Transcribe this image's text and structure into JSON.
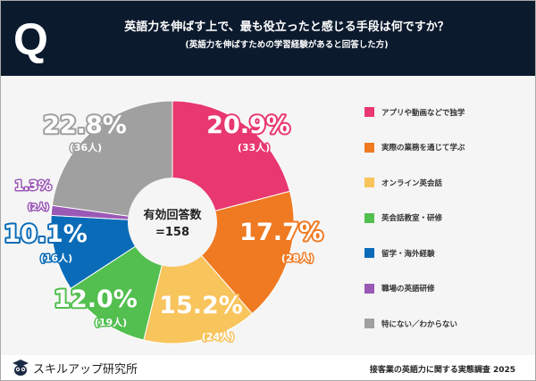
{
  "header": {
    "q": "Q",
    "title": "英語力を伸ばす上で、最も役立ったと感じる手段は何ですか？",
    "subtitle": "(英語力を伸ばすための学習経験があると回答した方)"
  },
  "chart_data": {
    "type": "pie",
    "donut": true,
    "title": "英語力を伸ばす上で、最も役立ったと感じる手段は何ですか？",
    "center_label": [
      "有効回答数",
      "=158"
    ],
    "total": 158,
    "categories": [
      "アプリや動画などで独学",
      "実際の業務を通じて学ぶ",
      "オンライン英会話",
      "英会話教室・研修",
      "留学・海外経験",
      "職場の英語研修",
      "特にない／わからない"
    ],
    "values": [
      20.9,
      17.7,
      15.2,
      12.0,
      10.1,
      1.3,
      22.8
    ],
    "value_labels": [
      "20.9%",
      "17.7%",
      "15.2%",
      "12.0%",
      "10.1%",
      "1.3%",
      "22.8%"
    ],
    "counts": [
      "(33人)",
      "(28人)",
      "(24人)",
      "(19人)",
      "(16人)",
      "(2人)",
      "(36人)"
    ],
    "colors": [
      "#e8386f",
      "#ef7a22",
      "#f8c45c",
      "#52bf4f",
      "#0a6cb8",
      "#9b59b6",
      "#a0a0a0"
    ],
    "legend_placement": "right"
  },
  "footer": {
    "brand": "スキルアップ研究所",
    "survey": "接客業の英語力に関する実態調査 2025"
  }
}
